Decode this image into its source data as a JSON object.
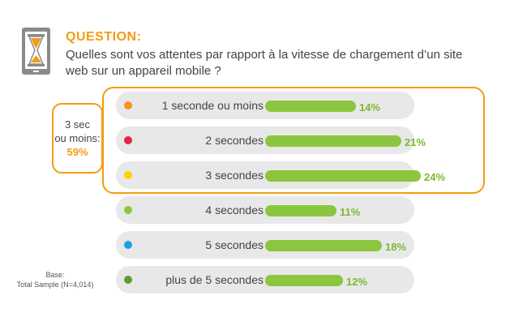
{
  "header": {
    "label": "QUESTION:",
    "text": "Quelles sont vos attentes par rapport à la vitesse de chargement d’un site web sur un appareil mobile ?",
    "icon": "hourglass-phone-icon"
  },
  "group_callout": {
    "line1": "3 sec",
    "line2": "ou moins:",
    "value": "59%"
  },
  "base_note": {
    "line1": "Base:",
    "line2": "Total Sample (N=4,014)"
  },
  "colors": {
    "accent": "#f39c12",
    "bar": "#8cc63f",
    "row_bg": "#e8e8e8"
  },
  "chart_data": {
    "type": "bar",
    "orientation": "horizontal",
    "categories": [
      "1 seconde ou moins",
      "2 secondes",
      "3 secondes",
      "4 secondes",
      "5 secondes",
      "plus de 5 secondes"
    ],
    "values": [
      14,
      21,
      24,
      11,
      18,
      12
    ],
    "value_labels": [
      "14%",
      "21%",
      "24%",
      "11%",
      "18%",
      "12%"
    ],
    "dot_colors": [
      "#f7941d",
      "#e2264d",
      "#ffd200",
      "#8cc63f",
      "#1ba1e2",
      "#5a9e2f"
    ],
    "xlim": [
      0,
      24
    ]
  }
}
